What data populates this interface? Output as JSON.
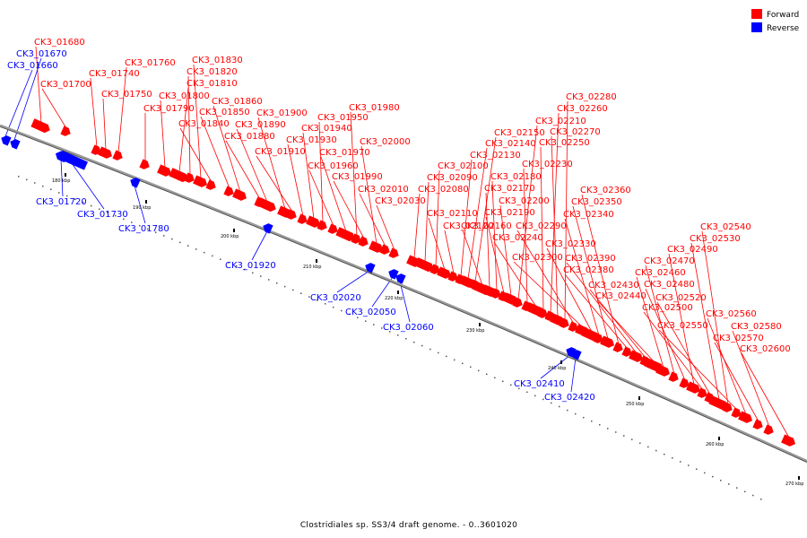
{
  "caption": "Clostridiales sp. SS3/4 draft genome. - 0..3601020",
  "legend": [
    {
      "label": "Forward",
      "color": "#ff0000"
    },
    {
      "label": "Reverse",
      "color": "#0000ff"
    }
  ],
  "scale_labels": [
    "180 kbp",
    "190 kbp",
    "200 kbp",
    "210 kbp",
    "220 kbp",
    "230 kbp",
    "240 kbp",
    "250 kbp",
    "260 kbp",
    "270 kbp"
  ],
  "forward_genes": [
    "CK3_01680",
    "CK3_01700",
    "CK3_01740",
    "CK3_01750",
    "CK3_01760",
    "CK3_01790",
    "CK3_01800",
    "CK3_01810",
    "CK3_01820",
    "CK3_01830",
    "CK3_01840",
    "CK3_01850",
    "CK3_01860",
    "CK3_01880",
    "CK3_01890",
    "CK3_01900",
    "CK3_01910",
    "CK3_01930",
    "CK3_01940",
    "CK3_01950",
    "CK3_01960",
    "CK3_01970",
    "CK3_01980",
    "CK3_01990",
    "CK3_02000",
    "CK3_02010",
    "CK3_02030",
    "CK3_02080",
    "CK3_02090",
    "CK3_02100",
    "CK3_02110",
    "CK3_02120",
    "CK3_02130",
    "CK3_02140",
    "CK3_02150",
    "CK3_02160",
    "CK3_02170",
    "CK3_02180",
    "CK3_02190",
    "CK3_02200",
    "CK3_02210",
    "CK3_02230",
    "CK3_02240",
    "CK3_02250",
    "CK3_02260",
    "CK3_02270",
    "CK3_02280",
    "CK3_02290",
    "CK3_02300",
    "CK3_02330",
    "CK3_02340",
    "CK3_02350",
    "CK3_02360",
    "CK3_02380",
    "CK3_02390",
    "CK3_02430",
    "CK3_02440",
    "CK3_02460",
    "CK3_02470",
    "CK3_02480",
    "CK3_02490",
    "CK3_02500",
    "CK3_02520",
    "CK3_02530",
    "CK3_02540",
    "CK3_02550",
    "CK3_02560",
    "CK3_02570",
    "CK3_02580",
    "CK3_02600"
  ],
  "reverse_genes": [
    "CK3_01660",
    "CK3_01670",
    "CK3_01720",
    "CK3_01730",
    "CK3_01780",
    "CK3_01920",
    "CK3_02020",
    "CK3_02050",
    "CK3_02060",
    "CK3_02410",
    "CK3_02420"
  ]
}
